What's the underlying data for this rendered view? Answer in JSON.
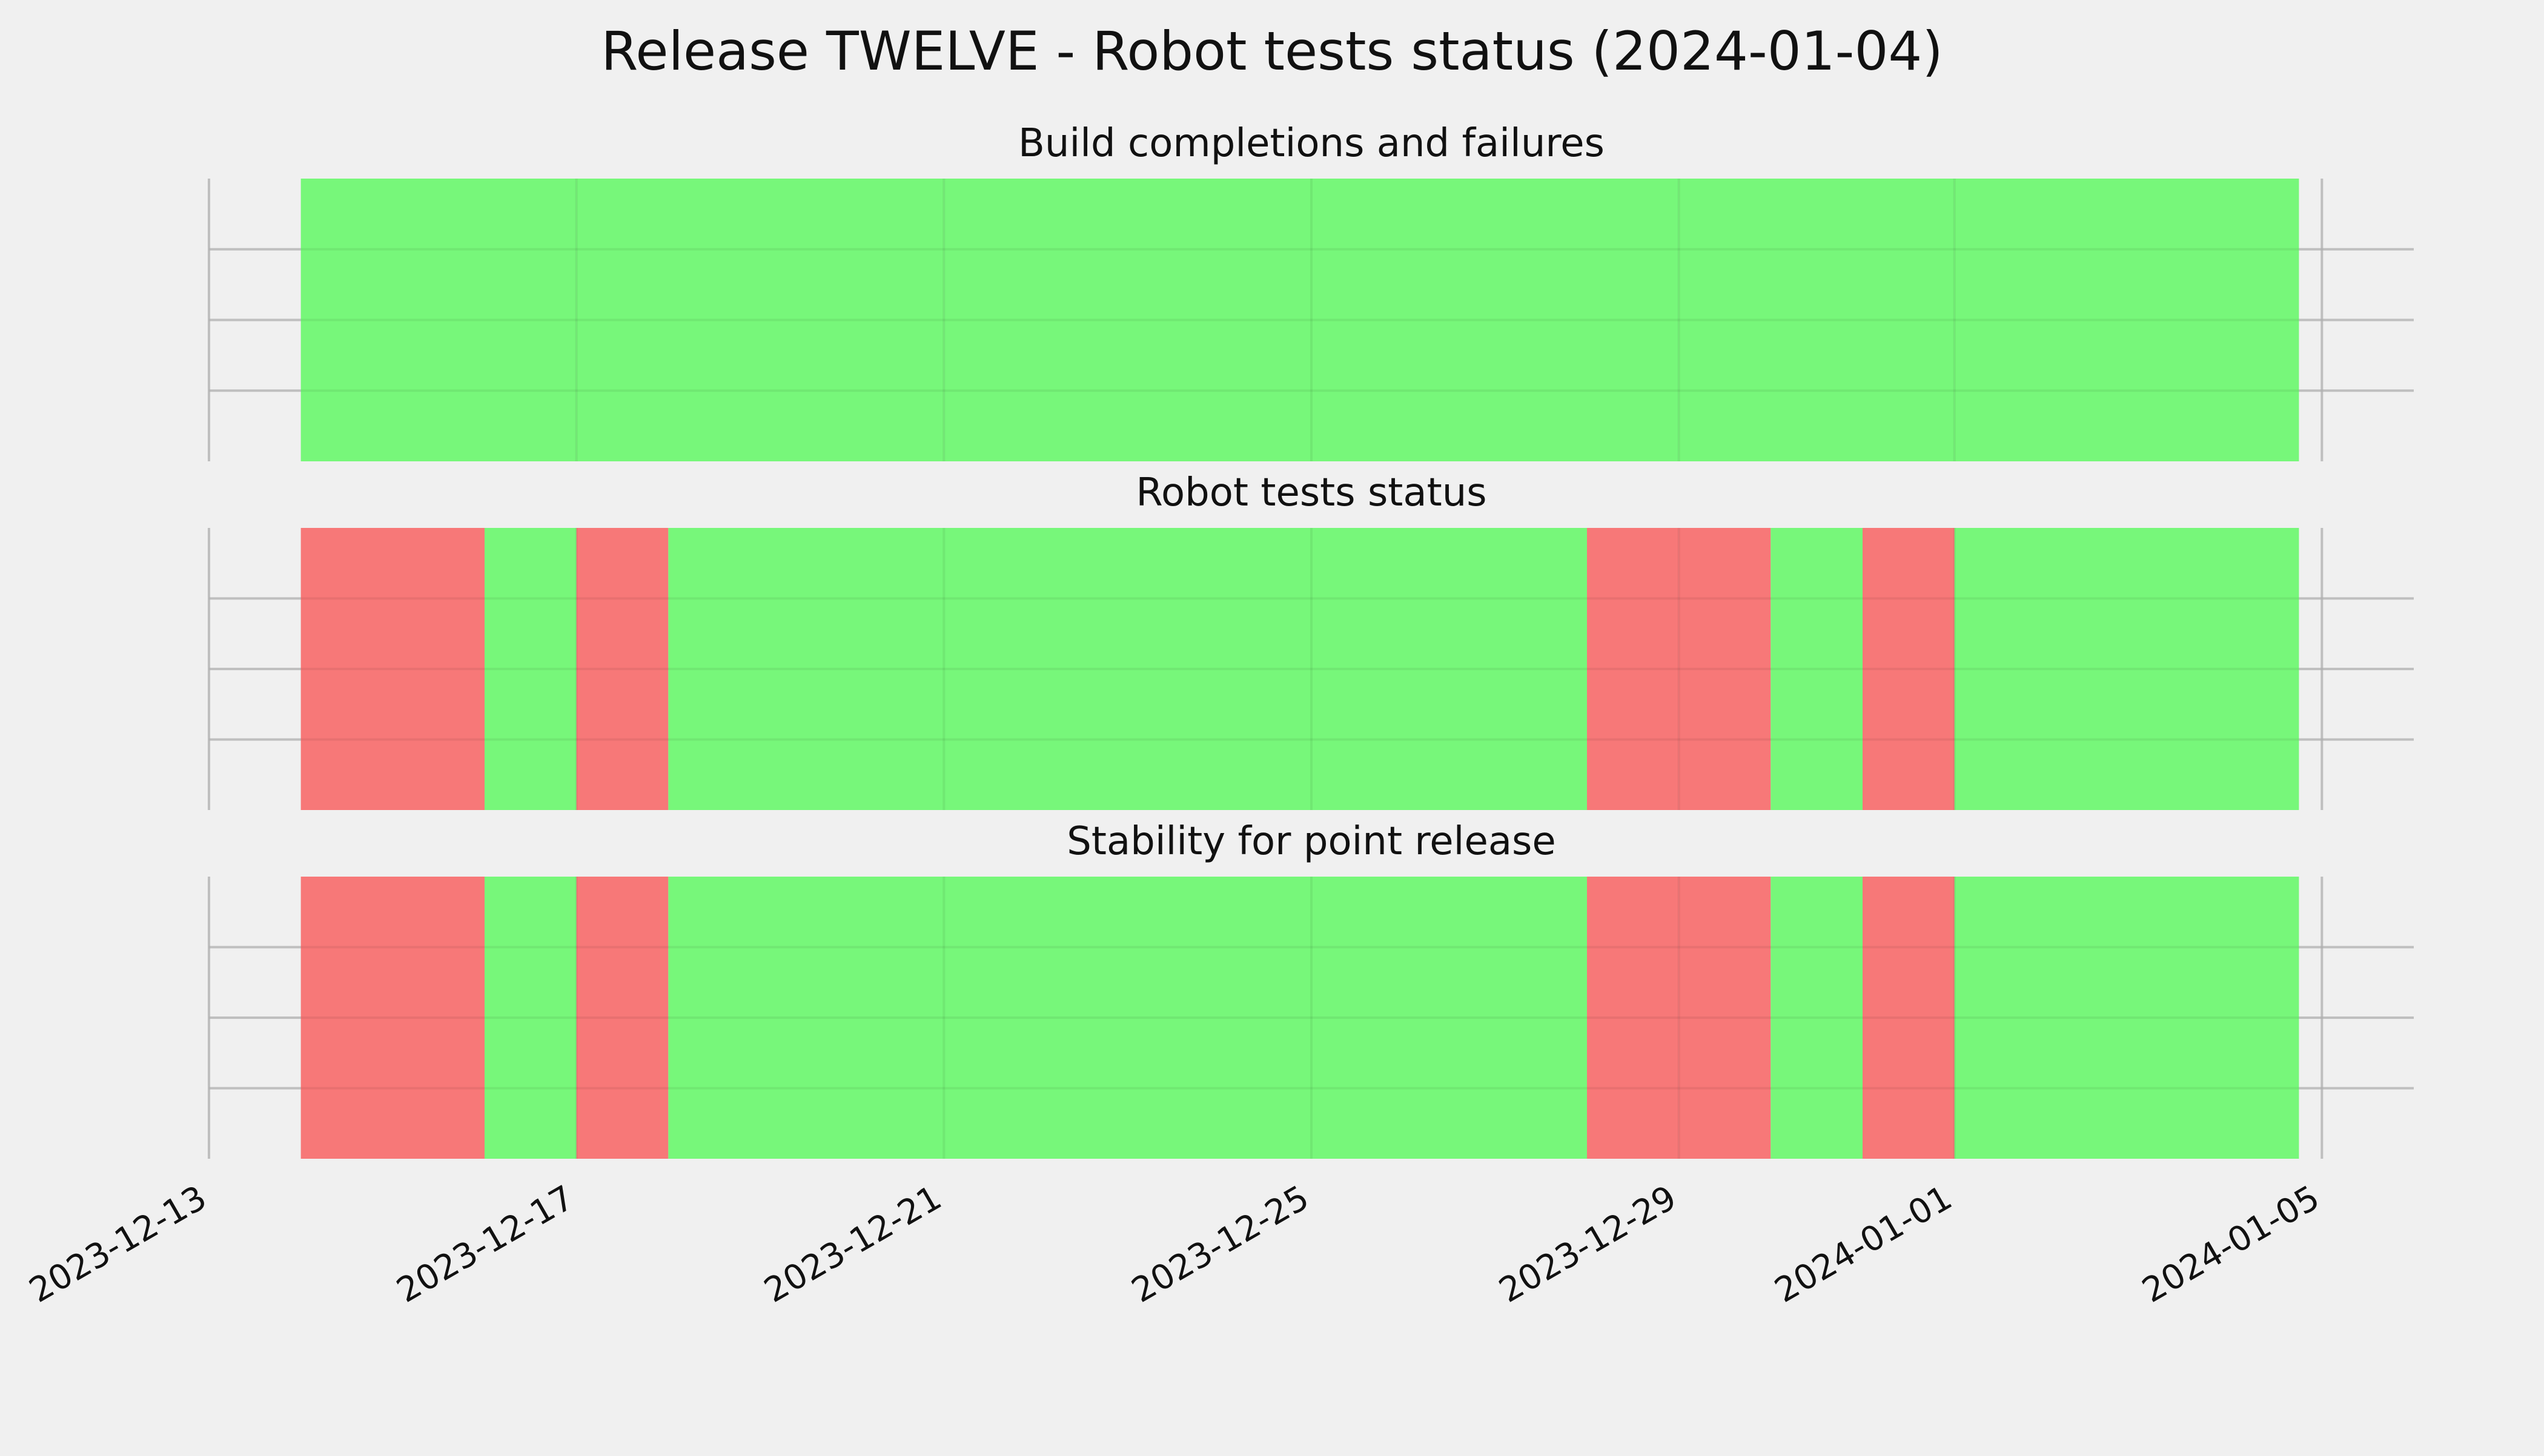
{
  "chart_data": {
    "type": "timeline",
    "title": "Release TWELVE - Robot tests status (2024-01-04)",
    "x_axis": {
      "type": "date",
      "range": [
        "2023-12-13",
        "2024-01-06"
      ],
      "ticks": [
        "2023-12-13",
        "2023-12-17",
        "2023-12-21",
        "2023-12-25",
        "2023-12-29",
        "2024-01-01",
        "2024-01-05"
      ]
    },
    "colors": {
      "pass": "#77f77a",
      "fail": "#f77878",
      "background": "#f0f0f0",
      "grid": "#cbcbcb"
    },
    "panels": [
      {
        "title": "Build completions and failures",
        "segments": [
          {
            "start": "2023-12-14",
            "end": "2023-12-16T00:00",
            "status": "pass"
          },
          {
            "start": "2023-12-16T00:00",
            "end": "2023-12-17",
            "status": "pass"
          },
          {
            "start": "2023-12-17",
            "end": "2023-12-21",
            "status": "pass"
          },
          {
            "start": "2023-12-21",
            "end": "2023-12-25",
            "status": "pass"
          },
          {
            "start": "2023-12-25",
            "end": "2023-12-29",
            "status": "pass"
          },
          {
            "start": "2023-12-29",
            "end": "2024-01-01",
            "status": "pass"
          },
          {
            "start": "2024-01-01",
            "end": "2024-01-04T18:00",
            "status": "pass"
          }
        ]
      },
      {
        "title": "Robot tests status",
        "segments": [
          {
            "start": "2023-12-14",
            "end": "2023-12-16",
            "status": "fail"
          },
          {
            "start": "2023-12-16",
            "end": "2023-12-17",
            "status": "pass"
          },
          {
            "start": "2023-12-17",
            "end": "2023-12-18",
            "status": "fail"
          },
          {
            "start": "2023-12-18",
            "end": "2023-12-28",
            "status": "pass"
          },
          {
            "start": "2023-12-28",
            "end": "2023-12-29",
            "status": "fail"
          },
          {
            "start": "2023-12-29",
            "end": "2023-12-30",
            "status": "fail"
          },
          {
            "start": "2023-12-30",
            "end": "2023-12-31",
            "status": "pass"
          },
          {
            "start": "2023-12-31",
            "end": "2024-01-01",
            "status": "fail"
          },
          {
            "start": "2024-01-01",
            "end": "2024-01-04T18:00",
            "status": "pass"
          }
        ]
      },
      {
        "title": "Stability for point release",
        "segments": [
          {
            "start": "2023-12-14",
            "end": "2023-12-16",
            "status": "fail"
          },
          {
            "start": "2023-12-16",
            "end": "2023-12-17",
            "status": "pass"
          },
          {
            "start": "2023-12-17",
            "end": "2023-12-18",
            "status": "fail"
          },
          {
            "start": "2023-12-18",
            "end": "2023-12-28",
            "status": "pass"
          },
          {
            "start": "2023-12-28",
            "end": "2023-12-29",
            "status": "fail"
          },
          {
            "start": "2023-12-29",
            "end": "2023-12-30",
            "status": "fail"
          },
          {
            "start": "2023-12-30",
            "end": "2023-12-31",
            "status": "pass"
          },
          {
            "start": "2023-12-31",
            "end": "2024-01-01",
            "status": "fail"
          },
          {
            "start": "2024-01-01",
            "end": "2024-01-04T18:00",
            "status": "pass"
          }
        ]
      }
    ],
    "grid": true,
    "legend": "none"
  }
}
